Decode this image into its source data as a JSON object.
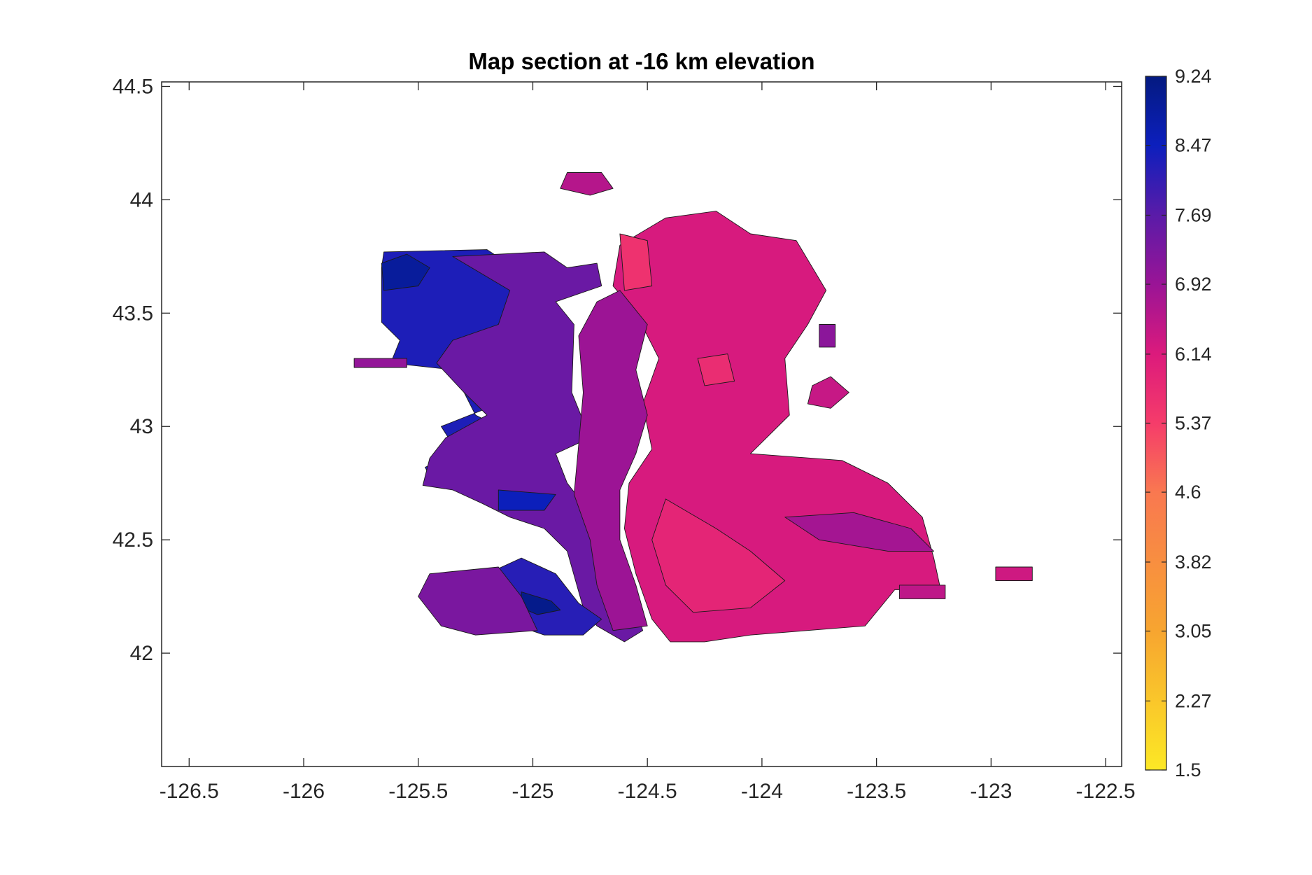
{
  "chart_data": {
    "type": "heatmap",
    "title": "Map section at -16 km elevation",
    "xlabel": "",
    "ylabel": "",
    "xlim": [
      -126.62,
      -122.43
    ],
    "ylim": [
      41.5,
      44.52
    ],
    "x_ticks": [
      -126.5,
      -126,
      -125.5,
      -125,
      -124.5,
      -124,
      -123.5,
      -123,
      -122.5
    ],
    "y_ticks": [
      42,
      42.5,
      43,
      43.5,
      44,
      44.5
    ],
    "x_tick_labels": [
      "-126.5",
      "-126",
      "-125.5",
      "-125",
      "-124.5",
      "-124",
      "-123.5",
      "-123",
      "-122.5"
    ],
    "y_tick_labels": [
      "42",
      "42.5",
      "43",
      "43.5",
      "44",
      "44.5"
    ],
    "colorbar": {
      "min": 1.5,
      "max": 9.24,
      "tick_labels": [
        "9.24",
        "8.47",
        "7.69",
        "6.92",
        "6.14",
        "5.37",
        "4.6",
        "3.82",
        "3.05",
        "2.27",
        "1.5"
      ],
      "tick_values": [
        9.24,
        8.47,
        7.69,
        6.92,
        6.14,
        5.37,
        4.6,
        3.82,
        3.05,
        2.27,
        1.5
      ],
      "colormap_stops": [
        {
          "value": 1.5,
          "color": "#fce825"
        },
        {
          "value": 3.05,
          "color": "#f7a530"
        },
        {
          "value": 4.6,
          "color": "#f97850"
        },
        {
          "value": 5.37,
          "color": "#f53c6a"
        },
        {
          "value": 6.14,
          "color": "#dc1a7c"
        },
        {
          "value": 6.92,
          "color": "#9a1496"
        },
        {
          "value": 7.69,
          "color": "#5a1ba8"
        },
        {
          "value": 8.47,
          "color": "#0c1fbd"
        },
        {
          "value": 9.24,
          "color": "#041a80"
        }
      ]
    },
    "grid": false,
    "regions": [
      {
        "value": 8.3,
        "polygon": [
          [
            -125.65,
            43.77
          ],
          [
            -125.2,
            43.78
          ],
          [
            -125.05,
            43.68
          ],
          [
            -125.0,
            43.48
          ],
          [
            -124.95,
            43.25
          ],
          [
            -125.1,
            43.12
          ],
          [
            -125.4,
            43.0
          ],
          [
            -125.35,
            42.92
          ],
          [
            -125.3,
            42.9
          ],
          [
            -125.47,
            42.82
          ],
          [
            -125.45,
            42.78
          ],
          [
            -125.3,
            42.75
          ],
          [
            -125.2,
            42.68
          ],
          [
            -125.15,
            42.64
          ],
          [
            -125.02,
            42.66
          ],
          [
            -124.93,
            42.8
          ],
          [
            -125.05,
            42.95
          ],
          [
            -125.25,
            43.05
          ],
          [
            -125.35,
            43.25
          ],
          [
            -125.62,
            43.28
          ],
          [
            -125.58,
            43.38
          ],
          [
            -125.66,
            43.46
          ],
          [
            -125.66,
            43.7
          ]
        ]
      },
      {
        "value": 8.9,
        "polygon": [
          [
            -125.66,
            43.72
          ],
          [
            -125.55,
            43.76
          ],
          [
            -125.45,
            43.7
          ],
          [
            -125.5,
            43.62
          ],
          [
            -125.65,
            43.6
          ]
        ]
      },
      {
        "value": 7.5,
        "polygon": [
          [
            -125.35,
            43.75
          ],
          [
            -124.95,
            43.77
          ],
          [
            -124.85,
            43.7
          ],
          [
            -124.72,
            43.72
          ],
          [
            -124.7,
            43.62
          ],
          [
            -124.9,
            43.55
          ],
          [
            -124.82,
            43.45
          ],
          [
            -124.83,
            43.15
          ],
          [
            -124.75,
            42.95
          ],
          [
            -124.9,
            42.88
          ],
          [
            -124.85,
            42.75
          ],
          [
            -124.75,
            42.62
          ],
          [
            -124.65,
            42.45
          ],
          [
            -124.58,
            42.28
          ],
          [
            -124.52,
            42.1
          ],
          [
            -124.6,
            42.05
          ],
          [
            -124.72,
            42.12
          ],
          [
            -124.78,
            42.2
          ],
          [
            -124.85,
            42.45
          ],
          [
            -124.95,
            42.55
          ],
          [
            -125.1,
            42.6
          ],
          [
            -125.22,
            42.66
          ],
          [
            -125.35,
            42.72
          ],
          [
            -125.48,
            42.74
          ],
          [
            -125.45,
            42.86
          ],
          [
            -125.38,
            42.95
          ],
          [
            -125.2,
            43.05
          ],
          [
            -125.3,
            43.15
          ],
          [
            -125.42,
            43.28
          ],
          [
            -125.35,
            43.38
          ],
          [
            -125.15,
            43.45
          ],
          [
            -125.1,
            43.6
          ]
        ]
      },
      {
        "value": 8.2,
        "polygon": [
          [
            -125.05,
            42.42
          ],
          [
            -124.9,
            42.35
          ],
          [
            -124.8,
            42.22
          ],
          [
            -124.7,
            42.15
          ],
          [
            -124.78,
            42.08
          ],
          [
            -124.95,
            42.08
          ],
          [
            -125.15,
            42.15
          ],
          [
            -125.3,
            42.22
          ],
          [
            -125.2,
            42.35
          ]
        ]
      },
      {
        "value": 9.1,
        "polygon": [
          [
            -125.05,
            42.27
          ],
          [
            -124.92,
            42.23
          ],
          [
            -124.88,
            42.19
          ],
          [
            -124.98,
            42.17
          ],
          [
            -125.05,
            42.2
          ]
        ]
      },
      {
        "value": 7.3,
        "polygon": [
          [
            -125.45,
            42.35
          ],
          [
            -125.15,
            42.38
          ],
          [
            -125.05,
            42.25
          ],
          [
            -124.98,
            42.1
          ],
          [
            -125.25,
            42.08
          ],
          [
            -125.4,
            42.12
          ],
          [
            -125.5,
            42.25
          ]
        ]
      },
      {
        "value": 8.5,
        "polygon": [
          [
            -125.15,
            42.72
          ],
          [
            -124.9,
            42.7
          ],
          [
            -124.95,
            42.63
          ],
          [
            -125.15,
            42.63
          ]
        ]
      },
      {
        "value": 6.2,
        "polygon": [
          [
            -124.62,
            43.8
          ],
          [
            -124.42,
            43.92
          ],
          [
            -124.2,
            43.95
          ],
          [
            -124.05,
            43.85
          ],
          [
            -123.85,
            43.82
          ],
          [
            -123.72,
            43.6
          ],
          [
            -123.8,
            43.45
          ],
          [
            -123.9,
            43.3
          ],
          [
            -123.88,
            43.05
          ],
          [
            -124.05,
            42.88
          ],
          [
            -123.65,
            42.85
          ],
          [
            -123.45,
            42.75
          ],
          [
            -123.3,
            42.6
          ],
          [
            -123.25,
            42.42
          ],
          [
            -123.22,
            42.28
          ],
          [
            -123.42,
            42.28
          ],
          [
            -123.55,
            42.12
          ],
          [
            -123.8,
            42.1
          ],
          [
            -124.05,
            42.08
          ],
          [
            -124.25,
            42.05
          ],
          [
            -124.4,
            42.05
          ],
          [
            -124.48,
            42.15
          ],
          [
            -124.55,
            42.35
          ],
          [
            -124.6,
            42.55
          ],
          [
            -124.58,
            42.75
          ],
          [
            -124.48,
            42.9
          ],
          [
            -124.52,
            43.1
          ],
          [
            -124.45,
            43.3
          ],
          [
            -124.55,
            43.5
          ],
          [
            -124.65,
            43.62
          ]
        ]
      },
      {
        "value": 6.9,
        "polygon": [
          [
            -124.62,
            43.6
          ],
          [
            -124.5,
            43.45
          ],
          [
            -124.55,
            43.25
          ],
          [
            -124.5,
            43.05
          ],
          [
            -124.55,
            42.88
          ],
          [
            -124.62,
            42.72
          ],
          [
            -124.62,
            42.5
          ],
          [
            -124.55,
            42.3
          ],
          [
            -124.5,
            42.12
          ],
          [
            -124.65,
            42.1
          ],
          [
            -124.72,
            42.3
          ],
          [
            -124.75,
            42.5
          ],
          [
            -124.82,
            42.7
          ],
          [
            -124.8,
            42.92
          ],
          [
            -124.78,
            43.15
          ],
          [
            -124.8,
            43.4
          ],
          [
            -124.72,
            43.55
          ]
        ]
      },
      {
        "value": 5.9,
        "polygon": [
          [
            -124.42,
            42.68
          ],
          [
            -124.2,
            42.55
          ],
          [
            -124.05,
            42.45
          ],
          [
            -123.9,
            42.32
          ],
          [
            -124.05,
            42.2
          ],
          [
            -124.3,
            42.18
          ],
          [
            -124.42,
            42.3
          ],
          [
            -124.48,
            42.5
          ]
        ]
      },
      {
        "value": 5.7,
        "polygon": [
          [
            -124.28,
            43.3
          ],
          [
            -124.15,
            43.32
          ],
          [
            -124.12,
            43.2
          ],
          [
            -124.25,
            43.18
          ]
        ]
      },
      {
        "value": 5.6,
        "polygon": [
          [
            -124.62,
            43.85
          ],
          [
            -124.5,
            43.82
          ],
          [
            -124.48,
            43.62
          ],
          [
            -124.6,
            43.6
          ]
        ]
      },
      {
        "value": 6.8,
        "polygon": [
          [
            -123.9,
            42.6
          ],
          [
            -123.6,
            42.62
          ],
          [
            -123.35,
            42.55
          ],
          [
            -123.25,
            42.45
          ],
          [
            -123.45,
            42.45
          ],
          [
            -123.75,
            42.5
          ]
        ]
      },
      {
        "value": 6.6,
        "polygon": [
          [
            -124.85,
            44.12
          ],
          [
            -124.7,
            44.12
          ],
          [
            -124.65,
            44.05
          ],
          [
            -124.75,
            44.02
          ],
          [
            -124.88,
            44.05
          ]
        ]
      },
      {
        "value": 6.4,
        "polygon": [
          [
            -123.7,
            43.22
          ],
          [
            -123.62,
            43.15
          ],
          [
            -123.7,
            43.08
          ],
          [
            -123.8,
            43.1
          ],
          [
            -123.78,
            43.18
          ]
        ]
      },
      {
        "value": 6.3,
        "polygon": [
          [
            -122.98,
            42.38
          ],
          [
            -122.82,
            42.38
          ],
          [
            -122.82,
            42.32
          ],
          [
            -122.98,
            42.32
          ]
        ]
      },
      {
        "value": 6.5,
        "polygon": [
          [
            -123.4,
            42.3
          ],
          [
            -123.2,
            42.3
          ],
          [
            -123.2,
            42.24
          ],
          [
            -123.4,
            42.24
          ]
        ]
      },
      {
        "value": 7.0,
        "polygon": [
          [
            -125.78,
            43.3
          ],
          [
            -125.55,
            43.3
          ],
          [
            -125.55,
            43.26
          ],
          [
            -125.78,
            43.26
          ]
        ]
      },
      {
        "value": 7.1,
        "polygon": [
          [
            -123.75,
            43.45
          ],
          [
            -123.68,
            43.45
          ],
          [
            -123.68,
            43.35
          ],
          [
            -123.75,
            43.35
          ]
        ]
      }
    ]
  }
}
